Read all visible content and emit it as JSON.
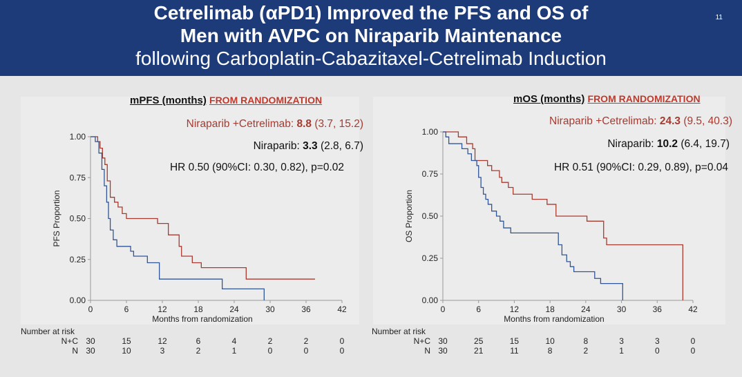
{
  "header": {
    "line1": "Cetrelimab (αPD1) Improved the PFS and OS of",
    "line2": "Men with AVPC on Niraparib Maintenance",
    "line3": "following Carboplatin-Cabazitaxel-Cetrelimab Induction",
    "slide_number": "11"
  },
  "colors": {
    "header_bg": "#1c3b78",
    "nc": "#a83a2f",
    "n": "#2f5597"
  },
  "pfs_panel": {
    "subtitle_main": "mPFS (months)",
    "subtitle_red": "FROM RANDOMIZATION",
    "nc_label": "Niraparib +Cetrelimab: ",
    "nc_median": "8.8",
    "nc_ci": " (3.7, 15.2)",
    "n_label": "Niraparib: ",
    "n_median": "3.3",
    "n_ci": " (2.8, 6.7)",
    "hr": "HR 0.50 (90%CI: 0.30, 0.82), p=0.02"
  },
  "os_panel": {
    "subtitle_main": "mOS (months)",
    "subtitle_red": "FROM RANDOMIZATION",
    "nc_label": "Niraparib +Cetrelimab: ",
    "nc_median": "24.3",
    "nc_ci": " (9.5, 40.3)",
    "n_label": "Niraparib: ",
    "n_median": "10.2",
    "n_ci": " (6.4, 19.7)",
    "hr": "HR 0.51 (90%CI: 0.29, 0.89), p=0.04"
  },
  "chart_data": [
    {
      "type": "line",
      "ylabel": "PFS Proportion",
      "xlabel": "Months from randomization",
      "xlim": [
        0,
        42
      ],
      "ylim": [
        0,
        1
      ],
      "xticks": [
        0,
        6,
        12,
        18,
        24,
        30,
        36,
        42
      ],
      "yticks": [
        "0.00",
        "0.25",
        "0.50",
        "0.75",
        "1.00"
      ],
      "series": [
        {
          "name": "N+C",
          "color": "#a83a2f",
          "steps": [
            [
              0,
              1.0
            ],
            [
              1.2,
              0.97
            ],
            [
              1.6,
              0.93
            ],
            [
              2.0,
              0.87
            ],
            [
              2.4,
              0.83
            ],
            [
              2.8,
              0.73
            ],
            [
              3.3,
              0.63
            ],
            [
              4.0,
              0.6
            ],
            [
              4.6,
              0.57
            ],
            [
              5.3,
              0.53
            ],
            [
              6.0,
              0.5
            ],
            [
              11.2,
              0.47
            ],
            [
              13.0,
              0.4
            ],
            [
              14.8,
              0.33
            ],
            [
              15.2,
              0.27
            ],
            [
              17.0,
              0.23
            ],
            [
              18.5,
              0.2
            ],
            [
              26.0,
              0.13
            ],
            [
              37.5,
              0.13
            ]
          ]
        },
        {
          "name": "N",
          "color": "#2f5597",
          "steps": [
            [
              0,
              1.0
            ],
            [
              0.8,
              0.97
            ],
            [
              1.4,
              0.9
            ],
            [
              1.9,
              0.8
            ],
            [
              2.3,
              0.7
            ],
            [
              2.7,
              0.6
            ],
            [
              3.0,
              0.5
            ],
            [
              3.3,
              0.43
            ],
            [
              3.8,
              0.37
            ],
            [
              4.4,
              0.33
            ],
            [
              6.7,
              0.3
            ],
            [
              7.2,
              0.27
            ],
            [
              9.5,
              0.23
            ],
            [
              11.5,
              0.13
            ],
            [
              22.0,
              0.07
            ],
            [
              29.0,
              0.0
            ]
          ]
        }
      ],
      "risk_table": {
        "title": "Number at risk",
        "times": [
          0,
          6,
          12,
          18,
          24,
          30,
          36,
          42
        ],
        "rows": [
          {
            "label": "N+C",
            "values": [
              "30",
              "15",
              "12",
              "6",
              "4",
              "2",
              "2",
              "0"
            ]
          },
          {
            "label": "N",
            "values": [
              "30",
              "10",
              "3",
              "2",
              "1",
              "0",
              "0",
              "0"
            ]
          }
        ]
      }
    },
    {
      "type": "line",
      "ylabel": "OS Proportion",
      "xlabel": "Months from randomization",
      "xlim": [
        0,
        42
      ],
      "ylim": [
        0,
        1
      ],
      "xticks": [
        0,
        6,
        12,
        18,
        24,
        30,
        36,
        42
      ],
      "yticks": [
        "0.00",
        "0.25",
        "0.50",
        "0.75",
        "1.00"
      ],
      "series": [
        {
          "name": "N+C",
          "color": "#a83a2f",
          "steps": [
            [
              0,
              1.0
            ],
            [
              2.6,
              0.97
            ],
            [
              4.0,
              0.93
            ],
            [
              5.0,
              0.9
            ],
            [
              5.4,
              0.83
            ],
            [
              7.5,
              0.8
            ],
            [
              8.2,
              0.77
            ],
            [
              9.5,
              0.73
            ],
            [
              9.9,
              0.7
            ],
            [
              11.0,
              0.67
            ],
            [
              11.8,
              0.63
            ],
            [
              15.0,
              0.6
            ],
            [
              17.5,
              0.57
            ],
            [
              19.0,
              0.5
            ],
            [
              24.2,
              0.47
            ],
            [
              27.0,
              0.37
            ],
            [
              27.5,
              0.33
            ],
            [
              40.3,
              0.0
            ]
          ]
        },
        {
          "name": "N",
          "color": "#2f5597",
          "steps": [
            [
              0,
              1.0
            ],
            [
              0.5,
              0.97
            ],
            [
              1.0,
              0.93
            ],
            [
              3.2,
              0.9
            ],
            [
              4.2,
              0.87
            ],
            [
              4.8,
              0.83
            ],
            [
              5.7,
              0.8
            ],
            [
              6.0,
              0.73
            ],
            [
              6.4,
              0.67
            ],
            [
              6.8,
              0.63
            ],
            [
              7.2,
              0.6
            ],
            [
              7.6,
              0.57
            ],
            [
              8.2,
              0.53
            ],
            [
              9.0,
              0.5
            ],
            [
              9.6,
              0.47
            ],
            [
              10.2,
              0.43
            ],
            [
              11.4,
              0.4
            ],
            [
              19.4,
              0.33
            ],
            [
              20.0,
              0.27
            ],
            [
              20.8,
              0.23
            ],
            [
              21.4,
              0.2
            ],
            [
              22.0,
              0.17
            ],
            [
              25.5,
              0.13
            ],
            [
              26.5,
              0.1
            ],
            [
              30.2,
              0.0
            ]
          ]
        }
      ],
      "risk_table": {
        "title": "Number at risk",
        "times": [
          0,
          6,
          12,
          18,
          24,
          30,
          36,
          42
        ],
        "rows": [
          {
            "label": "N+C",
            "values": [
              "30",
              "25",
              "15",
              "10",
              "8",
              "3",
              "3",
              "0"
            ]
          },
          {
            "label": "N",
            "values": [
              "30",
              "21",
              "11",
              "8",
              "2",
              "1",
              "0",
              "0"
            ]
          }
        ]
      }
    }
  ]
}
